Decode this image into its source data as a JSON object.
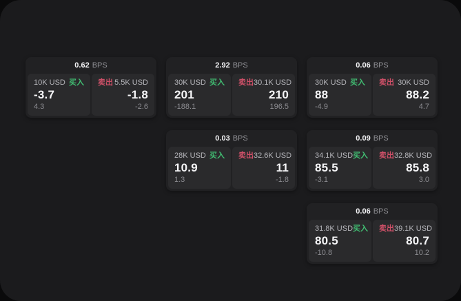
{
  "labels": {
    "bps_unit": "BPS",
    "buy": "买入",
    "sell": "卖出"
  },
  "colors": {
    "buy_accent": "#41bd72",
    "sell_accent": "#cf5068",
    "surface": "#1b1b1d",
    "card": "#212123",
    "panel": "#2a2a2c"
  },
  "cards": [
    {
      "bps": "0.62",
      "buy": {
        "amount": "10K USD",
        "price": "-3.7",
        "delta": "4.3"
      },
      "sell": {
        "amount": "5.5K USD",
        "price": "-1.8",
        "delta": "-2.6"
      }
    },
    {
      "bps": "2.92",
      "buy": {
        "amount": "30K USD",
        "price": "201",
        "delta": "-188.1"
      },
      "sell": {
        "amount": "30.1K USD",
        "price": "210",
        "delta": "196.5"
      }
    },
    {
      "bps": "0.06",
      "buy": {
        "amount": "30K USD",
        "price": "88",
        "delta": "-4.9"
      },
      "sell": {
        "amount": "30K USD",
        "price": "88.2",
        "delta": "4.7"
      }
    },
    {
      "bps": "0.03",
      "buy": {
        "amount": "28K USD",
        "price": "10.9",
        "delta": "1.3"
      },
      "sell": {
        "amount": "32.6K USD",
        "price": "11",
        "delta": "-1.8"
      }
    },
    {
      "bps": "0.09",
      "buy": {
        "amount": "34.1K USD",
        "price": "85.5",
        "delta": "-3.1"
      },
      "sell": {
        "amount": "32.8K USD",
        "price": "85.8",
        "delta": "3.0"
      }
    },
    {
      "bps": "0.06",
      "buy": {
        "amount": "31.8K USD",
        "price": "80.5",
        "delta": "-10.8"
      },
      "sell": {
        "amount": "39.1K USD",
        "price": "80.7",
        "delta": "10.2"
      }
    }
  ]
}
